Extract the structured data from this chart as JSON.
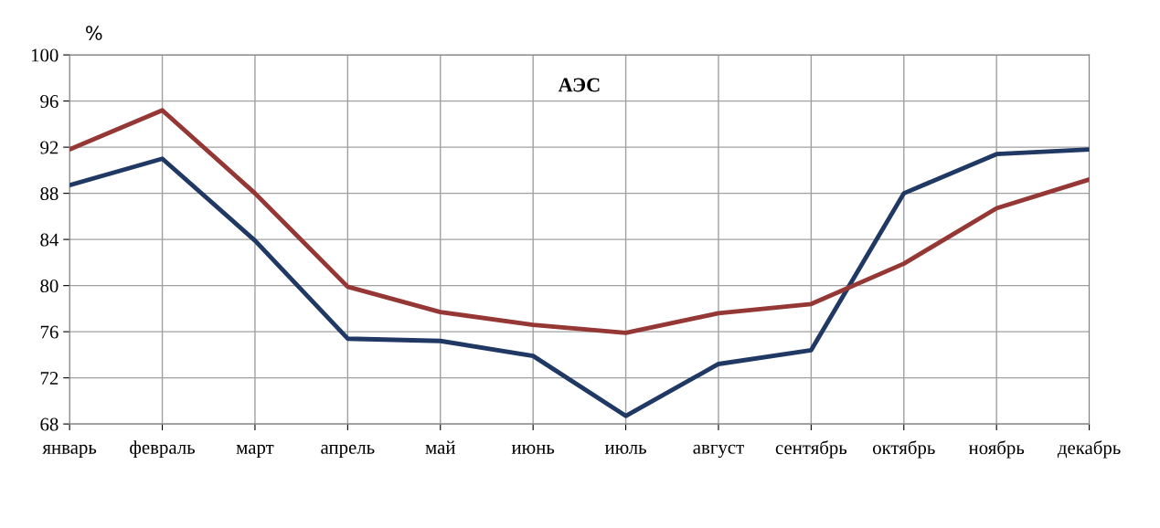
{
  "chart_data": {
    "type": "line",
    "title": "АЭС",
    "ylabel": "%",
    "categories": [
      "январь",
      "февраль",
      "март",
      "апрель",
      "май",
      "июнь",
      "июль",
      "август",
      "сентябрь",
      "октябрь",
      "ноябрь",
      "декабрь"
    ],
    "series": [
      {
        "color": "#1f3864",
        "values": [
          88.7,
          91.0,
          83.9,
          75.4,
          75.2,
          73.9,
          68.7,
          73.2,
          74.4,
          88.0,
          91.4,
          91.8
        ]
      },
      {
        "color": "#953735",
        "values": [
          91.8,
          95.2,
          88.0,
          79.9,
          77.7,
          76.6,
          75.9,
          77.6,
          78.4,
          81.9,
          86.7,
          89.2
        ]
      }
    ],
    "ylim": [
      68,
      100
    ],
    "yticks": [
      68,
      72,
      76,
      80,
      84,
      88,
      92,
      96,
      100
    ],
    "grid": true,
    "legend": false,
    "marker": "none",
    "line_style": "solid"
  }
}
